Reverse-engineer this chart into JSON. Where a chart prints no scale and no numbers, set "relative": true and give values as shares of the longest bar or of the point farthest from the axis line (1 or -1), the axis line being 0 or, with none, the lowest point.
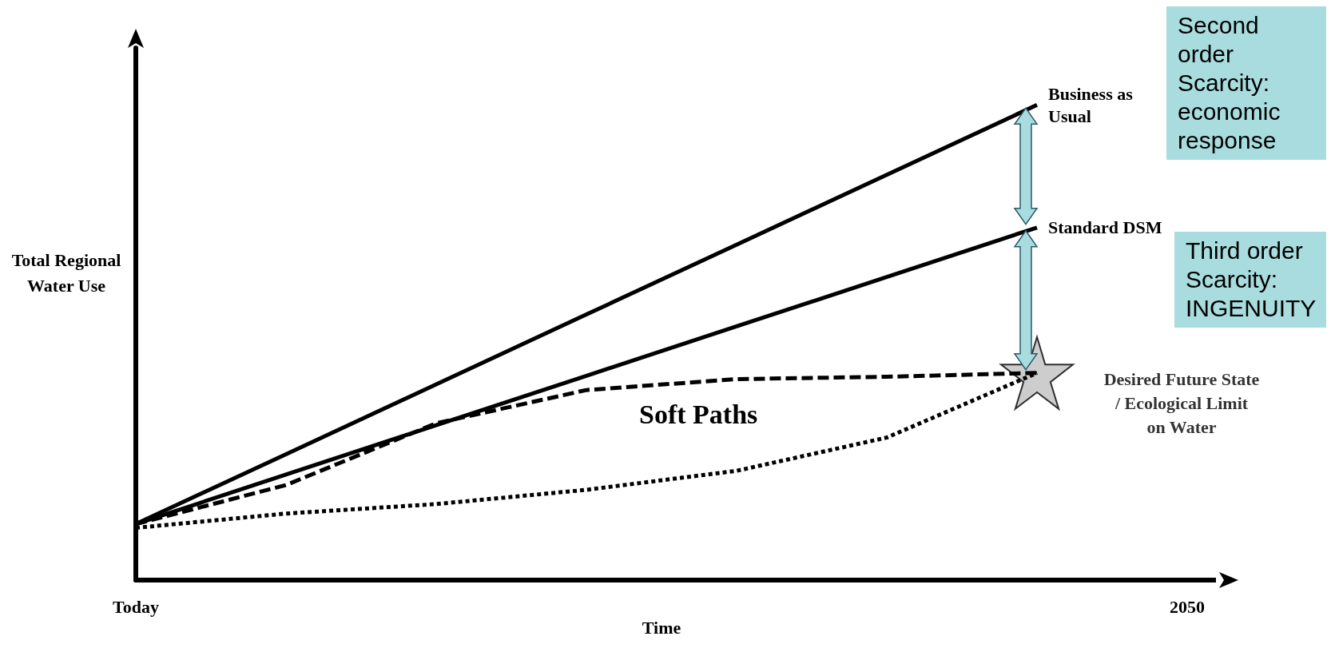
{
  "chart_data": {
    "type": "line",
    "relative": true,
    "categories": [
      "Today",
      null,
      null,
      null,
      null,
      null,
      null,
      "2050"
    ],
    "xlabel": "Time",
    "ylabel": "Total Regional Water Use",
    "legend": false,
    "marker": "none",
    "series": [
      {
        "name": "Business as Usual",
        "color": "#000000",
        "line_style": "solid",
        "values": [
          0.118,
          0.265,
          0.412,
          0.559,
          0.706,
          0.853,
          1.0,
          null
        ]
      },
      {
        "name": "Standard DSM",
        "color": "#000000",
        "line_style": "solid",
        "values": [
          0.118,
          0.222,
          0.326,
          0.43,
          0.534,
          0.638,
          0.742,
          null
        ]
      },
      {
        "color": "#000000",
        "line_style": "dashed",
        "values": [
          0.118,
          0.2,
          0.33,
          0.4,
          0.423,
          0.428,
          0.436,
          null
        ]
      },
      {
        "color": "#000000",
        "line_style": "dotted",
        "values": [
          0.11,
          0.14,
          0.16,
          0.19,
          0.23,
          0.3,
          0.436,
          null
        ]
      },
      {
        "name": "Desired Future State / Ecological Limit on Water",
        "type": "scatter",
        "marker": "star",
        "color": "#c0c0c0",
        "values": [
          null,
          null,
          null,
          null,
          null,
          null,
          0.436,
          null
        ]
      }
    ],
    "annotations": [
      "Soft Paths",
      "Second order Scarcity: economic response",
      "Third order Scarcity: INGENUITY"
    ]
  }
}
